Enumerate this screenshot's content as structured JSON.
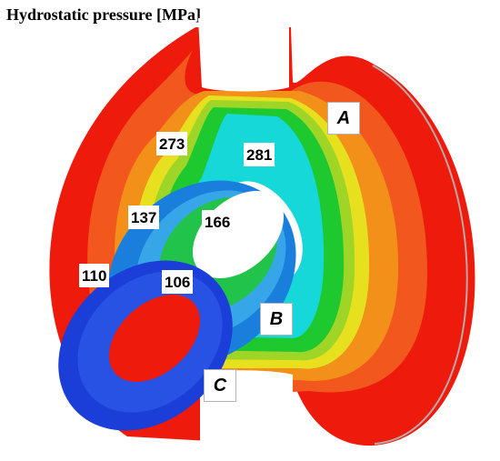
{
  "title": "Hydrostatic pressure [MPa]",
  "value_labels": [
    "273",
    "281",
    "137",
    "166",
    "110",
    "106"
  ],
  "part_labels": [
    "A",
    "B",
    "C"
  ],
  "colors": {
    "red": "#ee1a0c",
    "orange_red": "#f2581d",
    "orange": "#f39019",
    "yellow": "#e6e01e",
    "yellow_green": "#9ed526",
    "green": "#1ec82f",
    "cyan": "#17d8d8",
    "ring_b_blue": "#1a7fdc",
    "ring_b_light": "#37a6e8",
    "ring_c_blue": "#1b3dd8",
    "ring_c_mid": "#2752e4"
  }
}
